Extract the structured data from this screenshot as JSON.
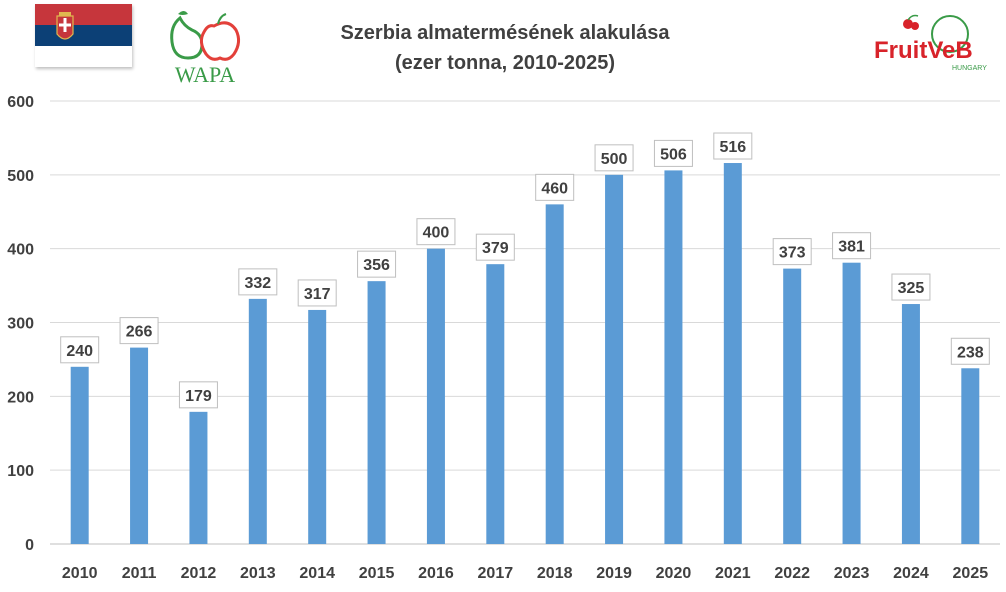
{
  "logos": {
    "wapa_text": "WAPA",
    "fruitveb_text": "FruitVeB",
    "fruitveb_sub": "HUNGARY"
  },
  "chart_data": {
    "type": "bar",
    "title": "Szerbia almatermésének alakulása",
    "subtitle": "(ezer tonna, 2010-2025)",
    "categories": [
      "2010",
      "2011",
      "2012",
      "2013",
      "2014",
      "2015",
      "2016",
      "2017",
      "2018",
      "2019",
      "2020",
      "2021",
      "2022",
      "2023",
      "2024",
      "2025"
    ],
    "values": [
      240,
      266,
      179,
      332,
      317,
      356,
      400,
      379,
      460,
      500,
      506,
      516,
      373,
      381,
      325,
      238
    ],
    "ylim": [
      0,
      600
    ],
    "yticks": [
      0,
      100,
      200,
      300,
      400,
      500,
      600
    ],
    "grid": true,
    "legend": "none",
    "bar_color": "#5B9BD5",
    "gridline_color": "#D9D9D9",
    "text_color": "#404040",
    "label_border_color": "#BFBFBF"
  }
}
